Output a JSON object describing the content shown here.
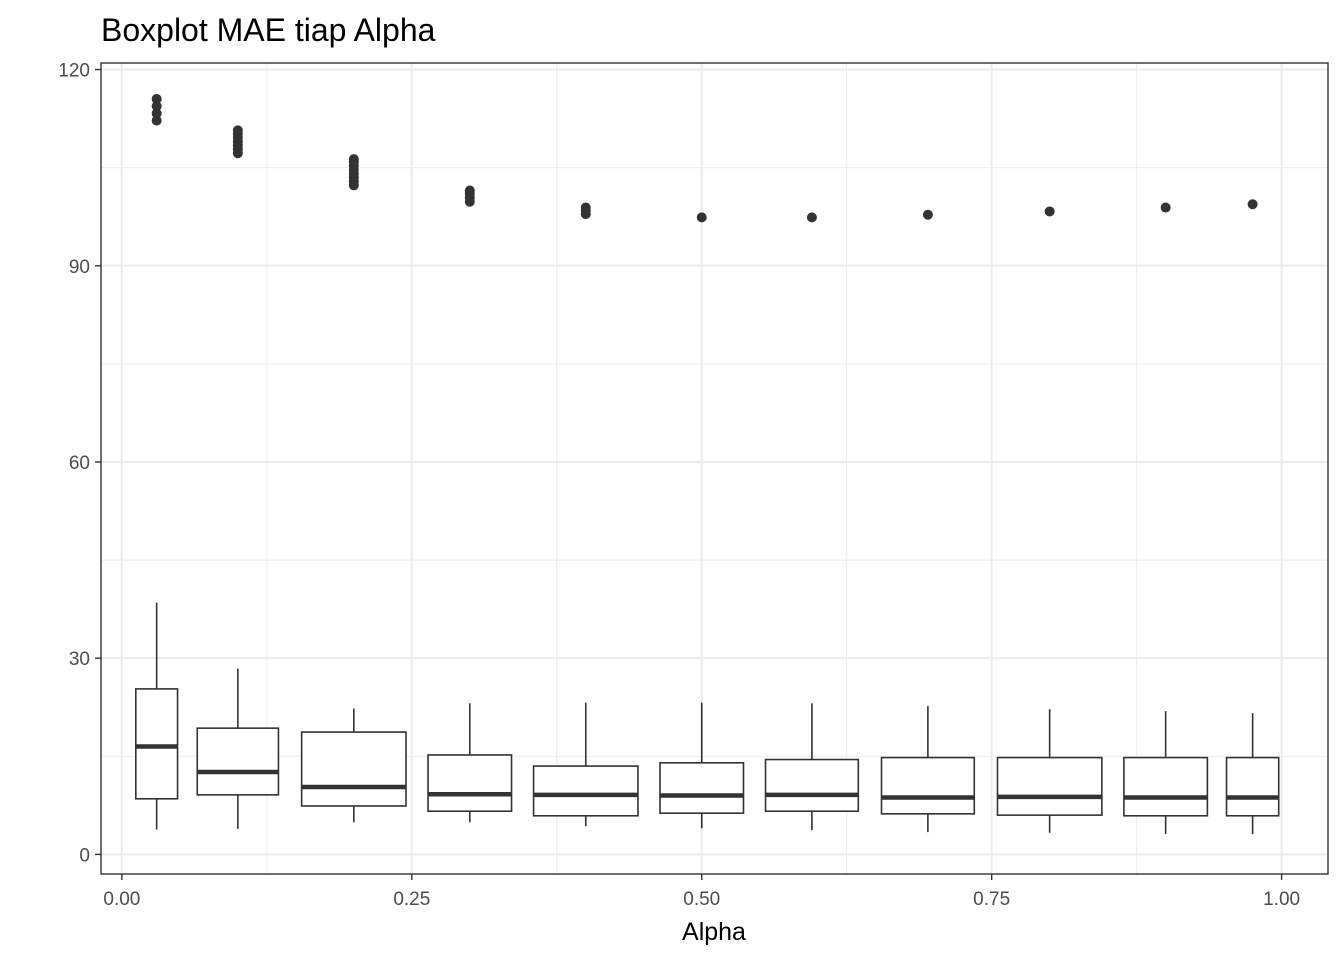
{
  "chart_data": {
    "type": "boxplot",
    "title": "Boxplot MAE tiap Alpha",
    "xlabel": "Alpha",
    "ylabel": "",
    "xlim": [
      -0.018,
      1.04
    ],
    "ylim": [
      -3,
      121
    ],
    "x_ticks": [
      0.0,
      0.25,
      0.5,
      0.75,
      1.0
    ],
    "x_tick_labels": [
      "0.00",
      "0.25",
      "0.50",
      "0.75",
      "1.00"
    ],
    "y_ticks": [
      0,
      30,
      60,
      90,
      120
    ],
    "y_tick_labels": [
      "0",
      "30",
      "60",
      "90",
      "120"
    ],
    "grid": true,
    "colors": {
      "box": "#333333",
      "grid": "#ebebeb",
      "panel_border": "#333333"
    },
    "boxes": [
      {
        "x": 0.03,
        "width": 0.036,
        "lower_whisker": 3.8,
        "q1": 8.5,
        "median": 16.5,
        "q3": 25.3,
        "upper_whisker": 38.5,
        "outliers": [
          112.2,
          113.3,
          114.4,
          115.5
        ]
      },
      {
        "x": 0.1,
        "width": 0.07,
        "lower_whisker": 3.9,
        "q1": 9.1,
        "median": 12.6,
        "q3": 19.3,
        "upper_whisker": 28.4,
        "outliers": [
          107.2,
          107.8,
          108.4,
          109.0,
          109.6,
          110.2,
          110.7
        ]
      },
      {
        "x": 0.2,
        "width": 0.09,
        "lower_whisker": 4.9,
        "q1": 7.4,
        "median": 10.3,
        "q3": 18.7,
        "upper_whisker": 22.3,
        "outliers": [
          102.3,
          102.9,
          103.5,
          104.1,
          104.7,
          105.3,
          105.9,
          106.3
        ]
      },
      {
        "x": 0.3,
        "width": 0.072,
        "lower_whisker": 4.9,
        "q1": 6.6,
        "median": 9.2,
        "q3": 15.2,
        "upper_whisker": 23.1,
        "outliers": [
          99.8,
          100.4,
          101.0,
          101.5
        ]
      },
      {
        "x": 0.4,
        "width": 0.09,
        "lower_whisker": 4.3,
        "q1": 5.9,
        "median": 9.1,
        "q3": 13.5,
        "upper_whisker": 23.2,
        "outliers": [
          97.9,
          98.4,
          98.9
        ]
      },
      {
        "x": 0.5,
        "width": 0.072,
        "lower_whisker": 4.0,
        "q1": 6.3,
        "median": 9.0,
        "q3": 14.0,
        "upper_whisker": 23.2,
        "outliers": [
          97.4
        ]
      },
      {
        "x": 0.595,
        "width": 0.08,
        "lower_whisker": 3.7,
        "q1": 6.6,
        "median": 9.1,
        "q3": 14.5,
        "upper_whisker": 23.1,
        "outliers": [
          97.4
        ]
      },
      {
        "x": 0.695,
        "width": 0.08,
        "lower_whisker": 3.4,
        "q1": 6.2,
        "median": 8.7,
        "q3": 14.8,
        "upper_whisker": 22.7,
        "outliers": [
          97.8
        ]
      },
      {
        "x": 0.8,
        "width": 0.09,
        "lower_whisker": 3.3,
        "q1": 6.0,
        "median": 8.8,
        "q3": 14.8,
        "upper_whisker": 22.2,
        "outliers": [
          98.3
        ]
      },
      {
        "x": 0.9,
        "width": 0.072,
        "lower_whisker": 3.1,
        "q1": 5.9,
        "median": 8.7,
        "q3": 14.8,
        "upper_whisker": 21.9,
        "outliers": [
          98.9
        ]
      },
      {
        "x": 0.975,
        "width": 0.045,
        "lower_whisker": 3.1,
        "q1": 5.9,
        "median": 8.7,
        "q3": 14.8,
        "upper_whisker": 21.6,
        "outliers": [
          99.4
        ]
      }
    ]
  }
}
